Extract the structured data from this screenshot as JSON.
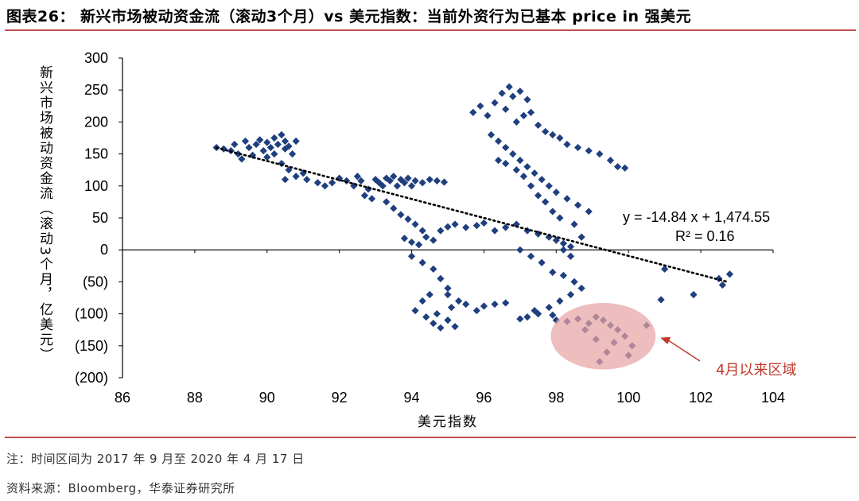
{
  "header": {
    "title": "图表26： 新兴市场被动资金流（滚动3个月）vs 美元指数：当前外资行为已基本 price in 强美元"
  },
  "footer": {
    "note": "注：时间区间为 2017 年 9 月至 2020 年 4 月 17 日",
    "source": "资料来源：Bloomberg，华泰证券研究所"
  },
  "chart_data": {
    "type": "scatter",
    "xlabel": "美元指数",
    "ylabel": "新兴市场被动资金流（滚动3个月，亿美元）",
    "xlim": [
      86,
      104
    ],
    "ylim": [
      -200,
      300
    ],
    "xticks": [
      86,
      88,
      90,
      92,
      94,
      96,
      98,
      100,
      102,
      104
    ],
    "xtick_labels": [
      "86",
      "88",
      "90",
      "92",
      "94",
      "96",
      "98",
      "100",
      "102",
      "104"
    ],
    "yticks": [
      300,
      250,
      200,
      150,
      100,
      50,
      0,
      -50,
      -100,
      -150,
      -200
    ],
    "ytick_labels": [
      "300",
      "250",
      "200",
      "150",
      "100",
      "50",
      "0",
      "(50)",
      "(100)",
      "(150)",
      "(200)"
    ],
    "grid": false,
    "marker_color": "#1f3f7f",
    "trendline": {
      "equation": "y = -14.84 x + 1,474.55",
      "r_squared": "R² = 0.16",
      "slope": -14.84,
      "intercept": 1474.55,
      "x_range": [
        88.6,
        102.7
      ]
    },
    "highlight": {
      "label": "4月以来区域",
      "center": [
        99.3,
        -135
      ],
      "rx": 1.45,
      "ry": 52,
      "fill": "#e8a3a3",
      "label_color": "#c0392b"
    },
    "points": [
      [
        88.6,
        160
      ],
      [
        88.8,
        158
      ],
      [
        89.0,
        155
      ],
      [
        89.1,
        165
      ],
      [
        89.2,
        150
      ],
      [
        89.3,
        142
      ],
      [
        89.4,
        170
      ],
      [
        89.5,
        160
      ],
      [
        89.6,
        148
      ],
      [
        89.7,
        165
      ],
      [
        89.8,
        172
      ],
      [
        89.9,
        155
      ],
      [
        90.0,
        145
      ],
      [
        90.0,
        168
      ],
      [
        90.1,
        160
      ],
      [
        90.2,
        175
      ],
      [
        90.2,
        150
      ],
      [
        90.3,
        165
      ],
      [
        90.4,
        180
      ],
      [
        90.5,
        158
      ],
      [
        90.5,
        170
      ],
      [
        90.6,
        162
      ],
      [
        90.7,
        150
      ],
      [
        90.8,
        170
      ],
      [
        90.4,
        135
      ],
      [
        90.6,
        125
      ],
      [
        90.8,
        115
      ],
      [
        90.5,
        110
      ],
      [
        91.0,
        120
      ],
      [
        91.1,
        110
      ],
      [
        91.4,
        105
      ],
      [
        91.6,
        100
      ],
      [
        91.8,
        105
      ],
      [
        92.0,
        112
      ],
      [
        92.2,
        108
      ],
      [
        92.4,
        100
      ],
      [
        92.5,
        115
      ],
      [
        92.6,
        108
      ],
      [
        92.8,
        95
      ],
      [
        93.0,
        110
      ],
      [
        93.1,
        105
      ],
      [
        93.2,
        100
      ],
      [
        93.3,
        112
      ],
      [
        93.4,
        108
      ],
      [
        93.5,
        115
      ],
      [
        93.6,
        100
      ],
      [
        93.7,
        110
      ],
      [
        93.8,
        105
      ],
      [
        93.9,
        112
      ],
      [
        94.0,
        100
      ],
      [
        94.1,
        108
      ],
      [
        94.3,
        105
      ],
      [
        94.5,
        110
      ],
      [
        94.7,
        108
      ],
      [
        94.9,
        106
      ],
      [
        92.7,
        85
      ],
      [
        92.9,
        80
      ],
      [
        93.3,
        75
      ],
      [
        93.5,
        65
      ],
      [
        93.7,
        55
      ],
      [
        93.9,
        48
      ],
      [
        94.1,
        40
      ],
      [
        94.3,
        30
      ],
      [
        93.8,
        18
      ],
      [
        94.0,
        12
      ],
      [
        94.2,
        8
      ],
      [
        94.4,
        20
      ],
      [
        94.6,
        15
      ],
      [
        94.0,
        -10
      ],
      [
        94.3,
        -20
      ],
      [
        94.6,
        -30
      ],
      [
        94.8,
        -45
      ],
      [
        95.0,
        -60
      ],
      [
        94.5,
        -70
      ],
      [
        94.3,
        -80
      ],
      [
        94.1,
        -95
      ],
      [
        94.4,
        -105
      ],
      [
        94.6,
        -115
      ],
      [
        94.8,
        -122
      ],
      [
        95.0,
        -110
      ],
      [
        95.2,
        -120
      ],
      [
        94.7,
        -100
      ],
      [
        95.1,
        -90
      ],
      [
        95.3,
        -80
      ],
      [
        95.0,
        -70
      ],
      [
        95.5,
        -85
      ],
      [
        95.8,
        -95
      ],
      [
        96.0,
        -88
      ],
      [
        96.3,
        -85
      ],
      [
        96.6,
        -83
      ],
      [
        94.8,
        30
      ],
      [
        95.0,
        36
      ],
      [
        95.2,
        40
      ],
      [
        95.5,
        35
      ],
      [
        95.8,
        38
      ],
      [
        96.0,
        42
      ],
      [
        96.3,
        30
      ],
      [
        96.6,
        35
      ],
      [
        96.9,
        40
      ],
      [
        97.2,
        30
      ],
      [
        97.5,
        25
      ],
      [
        97.8,
        20
      ],
      [
        98.0,
        15
      ],
      [
        98.2,
        10
      ],
      [
        98.4,
        5
      ],
      [
        97.0,
        0
      ],
      [
        97.3,
        -10
      ],
      [
        97.6,
        -20
      ],
      [
        97.9,
        -35
      ],
      [
        98.2,
        -40
      ],
      [
        98.5,
        -50
      ],
      [
        98.7,
        -60
      ],
      [
        98.4,
        -70
      ],
      [
        98.1,
        -80
      ],
      [
        97.8,
        -90
      ],
      [
        97.5,
        -100
      ],
      [
        97.2,
        -105
      ],
      [
        97.0,
        -108
      ],
      [
        97.4,
        -95
      ],
      [
        97.9,
        -102
      ],
      [
        95.7,
        215
      ],
      [
        95.9,
        225
      ],
      [
        96.1,
        210
      ],
      [
        96.3,
        230
      ],
      [
        96.5,
        245
      ],
      [
        96.7,
        255
      ],
      [
        96.8,
        240
      ],
      [
        97.0,
        248
      ],
      [
        97.2,
        235
      ],
      [
        96.6,
        220
      ],
      [
        96.9,
        200
      ],
      [
        97.1,
        210
      ],
      [
        97.3,
        215
      ],
      [
        97.5,
        195
      ],
      [
        97.7,
        185
      ],
      [
        97.9,
        180
      ],
      [
        98.1,
        175
      ],
      [
        98.3,
        165
      ],
      [
        98.6,
        160
      ],
      [
        98.9,
        155
      ],
      [
        99.2,
        150
      ],
      [
        99.5,
        140
      ],
      [
        99.7,
        130
      ],
      [
        99.9,
        128
      ],
      [
        96.2,
        180
      ],
      [
        96.4,
        170
      ],
      [
        96.6,
        160
      ],
      [
        96.8,
        150
      ],
      [
        97.0,
        140
      ],
      [
        97.2,
        130
      ],
      [
        97.4,
        120
      ],
      [
        97.6,
        110
      ],
      [
        97.8,
        100
      ],
      [
        98.0,
        90
      ],
      [
        98.3,
        80
      ],
      [
        98.6,
        70
      ],
      [
        98.9,
        60
      ],
      [
        96.4,
        140
      ],
      [
        96.6,
        135
      ],
      [
        96.9,
        125
      ],
      [
        97.1,
        115
      ],
      [
        97.3,
        100
      ],
      [
        97.5,
        85
      ],
      [
        97.7,
        75
      ],
      [
        97.9,
        60
      ],
      [
        98.1,
        50
      ],
      [
        98.5,
        40
      ],
      [
        98.7,
        20
      ],
      [
        98.2,
        0
      ],
      [
        98.4,
        -10
      ],
      [
        98.0,
        -110
      ],
      [
        98.3,
        -112
      ],
      [
        98.6,
        -108
      ],
      [
        98.9,
        -115
      ],
      [
        99.1,
        -105
      ],
      [
        99.3,
        -110
      ],
      [
        99.5,
        -118
      ],
      [
        99.7,
        -125
      ],
      [
        99.9,
        -135
      ],
      [
        100.1,
        -150
      ],
      [
        99.4,
        -160
      ],
      [
        99.1,
        -140
      ],
      [
        98.8,
        -125
      ],
      [
        99.6,
        -145
      ],
      [
        100.0,
        -165
      ],
      [
        99.2,
        -175
      ],
      [
        100.5,
        -118
      ],
      [
        100.9,
        -78
      ],
      [
        101.0,
        -30
      ],
      [
        101.8,
        -70
      ],
      [
        102.5,
        -45
      ],
      [
        102.6,
        -55
      ],
      [
        102.8,
        -38
      ]
    ]
  }
}
